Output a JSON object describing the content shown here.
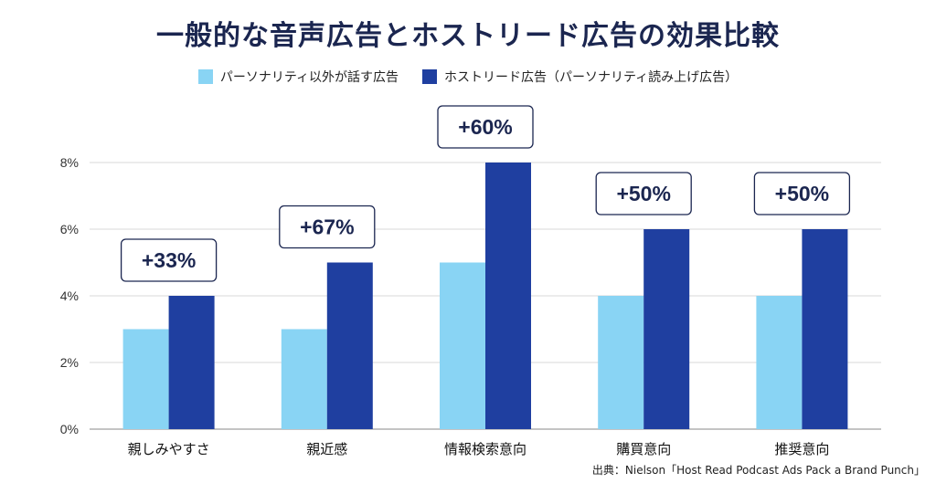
{
  "title": "一般的な音声広告とホストリード広告の効果比較",
  "legend": {
    "series1": "パーソナリティ以外が話す広告",
    "series2": "ホストリード広告（パーソナリティ読み上げ広告）"
  },
  "source": "出典：Nielson「Host Read Podcast Ads Pack a Brand Punch」",
  "colors": {
    "series1": "#89d4f4",
    "series2": "#1f3fa0",
    "grid": "#d9d9d9",
    "badge_border": "#1b2650"
  },
  "chart_data": {
    "type": "bar",
    "categories": [
      "親しみやすさ",
      "親近感",
      "情報検索意向",
      "購買意向",
      "推奨意向"
    ],
    "series": [
      {
        "name": "パーソナリティ以外が話す広告",
        "values": [
          3,
          3,
          5,
          4,
          4
        ]
      },
      {
        "name": "ホストリード広告（パーソナリティ読み上げ広告）",
        "values": [
          4,
          5,
          8,
          6,
          6
        ]
      }
    ],
    "uplift_labels": [
      "+33%",
      "+67%",
      "+60%",
      "+50%",
      "+50%"
    ],
    "ylim": [
      0,
      8
    ],
    "yticks": [
      "0%",
      "2%",
      "4%",
      "6%",
      "8%"
    ],
    "grid": true,
    "legend_position": "top"
  }
}
